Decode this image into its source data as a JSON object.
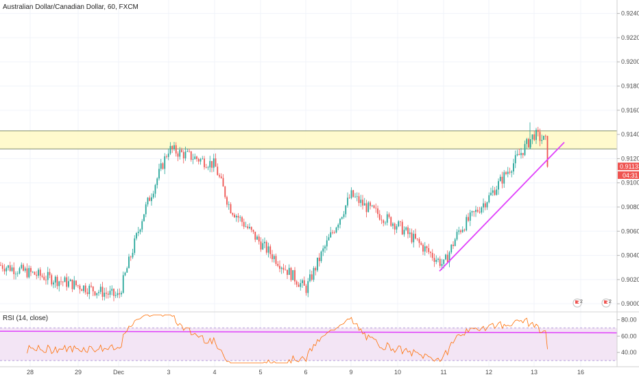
{
  "header": {
    "symbol_title": "Australian Dollar/Canadian Dollar, 60, FXCM"
  },
  "rsi_panel": {
    "label": "RSI (14, close)"
  },
  "price_tags": {
    "last_price": "0.91133",
    "countdown": "04:31"
  },
  "markers": [
    {
      "icon": "news-flag-icon",
      "count": "2"
    },
    {
      "icon": "news-flag-icon",
      "count": "2"
    }
  ],
  "colors": {
    "up": "#26a69a",
    "down": "#ef5350",
    "resistance_fill": "#fff9c4",
    "trendline": "#e040fb",
    "rsi_line": "#ff6d00",
    "rsi_band": "#f3e5f5",
    "last_tag": "#ef5350"
  },
  "chart_data": {
    "type": "candlestick",
    "title": "Australian Dollar/Canadian Dollar, 60, FXCM",
    "price_axis": {
      "ticks": [
        "0.92400",
        "0.92200",
        "0.92000",
        "0.91800",
        "0.91600",
        "0.91400",
        "0.91200",
        "0.91000",
        "0.90800",
        "0.90600",
        "0.90400",
        "0.90200",
        "0.90000"
      ],
      "ylim": [
        0.8995,
        0.925
      ]
    },
    "time_axis": {
      "ticks": [
        "28",
        "29",
        "Dec",
        "3",
        "4",
        "5",
        "6",
        "9",
        "10",
        "11",
        "12",
        "13",
        "16"
      ]
    },
    "resistance_zone": {
      "low": 0.9128,
      "high": 0.9143
    },
    "trendline": {
      "from": {
        "date": "10",
        "price": 0.9027
      },
      "to": {
        "date": "13",
        "price": 0.9133
      }
    },
    "last_price": 0.91133,
    "price_path": [
      {
        "x": "28",
        "y": 0.9032
      },
      {
        "x": "29",
        "y": 0.9015
      },
      {
        "x": "Dec",
        "y": 0.9006
      },
      {
        "x": "2",
        "y": 0.9075
      },
      {
        "x": "3",
        "y": 0.9128
      },
      {
        "x": "4",
        "y": 0.9115
      },
      {
        "x": "4",
        "y": 0.908
      },
      {
        "x": "5",
        "y": 0.905
      },
      {
        "x": "6",
        "y": 0.9012
      },
      {
        "x": "6",
        "y": 0.904
      },
      {
        "x": "9",
        "y": 0.909
      },
      {
        "x": "9",
        "y": 0.908
      },
      {
        "x": "10",
        "y": 0.9065
      },
      {
        "x": "11",
        "y": 0.9032
      },
      {
        "x": "11",
        "y": 0.906
      },
      {
        "x": "12",
        "y": 0.9088
      },
      {
        "x": "13",
        "y": 0.914
      },
      {
        "x": "13",
        "y": 0.9133
      }
    ],
    "rsi": {
      "name": "RSI (14, close)",
      "ticks": [
        "80.00",
        "60.00",
        "40.00"
      ],
      "ylim": [
        25,
        88
      ],
      "bands": [
        30,
        70
      ],
      "ma_level": 64
    }
  }
}
